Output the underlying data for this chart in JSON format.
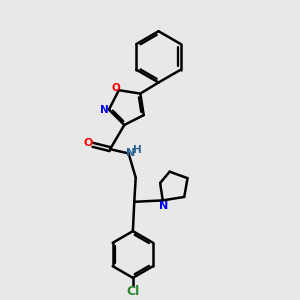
{
  "bg_color": "#e8e8e8",
  "line_color": "#000000",
  "bond_lw": 1.8,
  "figsize": [
    3.0,
    3.0
  ],
  "dpi": 100,
  "xlim": [
    0,
    10
  ],
  "ylim": [
    0,
    10
  ]
}
